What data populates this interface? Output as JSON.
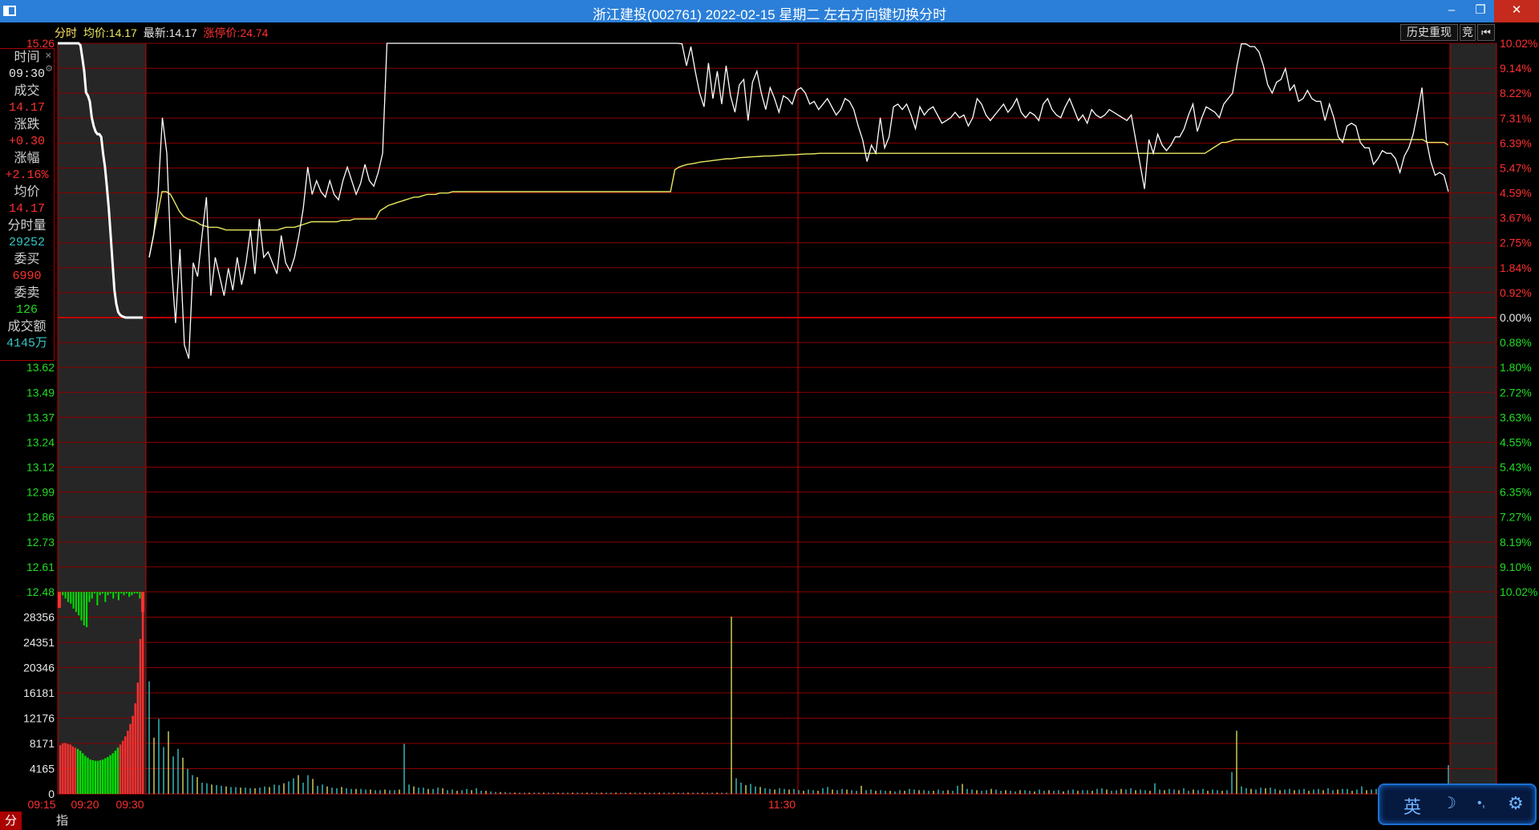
{
  "window": {
    "title": "浙江建投(002761) 2022-02-15 星期二      左右方向键切换分时",
    "minimize_label": "–",
    "maximize_label": "❐",
    "close_label": "✕"
  },
  "header": {
    "tab_label": "分时",
    "avg_label": "均价:",
    "avg_value": "14.17",
    "last_label": "最新:",
    "last_value": "14.17",
    "limit_label": "涨停价:",
    "limit_value": "24.74"
  },
  "toolbar": {
    "history_replay": "历史重现",
    "bid_label": "竞",
    "back_icon": "skip-back-icon"
  },
  "info_panel": {
    "time_label": "时间",
    "time_value": "09:30",
    "trade_label": "成交",
    "trade_value": "14.17",
    "change_label": "涨跌",
    "change_value": "+0.30",
    "pct_label": "涨幅",
    "pct_value": "+2.16%",
    "avg_label": "均价",
    "avg_value": "14.17",
    "minute_vol_label": "分时量",
    "minute_vol_value": "29252",
    "bid_label": "委买",
    "bid_value": "6990",
    "ask_label": "委卖",
    "ask_value": "126",
    "amount_label": "成交额",
    "amount_value": "4145万"
  },
  "tabs": [
    {
      "label": "分时量"
    },
    {
      "label": "指标"
    }
  ],
  "ime": {
    "lang": "英",
    "moon_icon": "moon-icon",
    "dot_icon": "punct-icon",
    "settings_icon": "gear-icon"
  },
  "colors": {
    "up": "#ff3030",
    "down": "#00e000",
    "price_line": "#ffffff",
    "avg_line": "#e8e860",
    "grid": "#8b0000",
    "vol_cyan": "#37c6c6",
    "vol_yellow": "#d8d860",
    "label_green": "#22dd22"
  },
  "chart_data": {
    "type": "line",
    "price_axis_left": [
      "15.26",
      "13.62",
      "13.49",
      "13.37",
      "13.24",
      "13.12",
      "12.99",
      "12.86",
      "12.73",
      "12.61",
      "12.48"
    ],
    "pct_axis_right": [
      "10.02%",
      "9.14%",
      "8.22%",
      "7.31%",
      "6.39%",
      "5.47%",
      "4.59%",
      "3.67%",
      "2.75%",
      "1.84%",
      "0.92%",
      "0.00%",
      "0.88%",
      "1.80%",
      "2.72%",
      "3.63%",
      "4.55%",
      "5.43%",
      "6.35%",
      "7.27%",
      "8.19%",
      "9.10%",
      "10.02%"
    ],
    "volume_axis": [
      "28356",
      "24351",
      "20346",
      "16181",
      "12176",
      "8171",
      "4165",
      "0"
    ],
    "time_axis": [
      "09:15",
      "09:20",
      "09:30",
      "11:30"
    ],
    "prev_close_pct": 0.0,
    "ylim_pct": [
      -10.02,
      10.02
    ],
    "auction": {
      "price_pct": [
        10.02,
        10.02,
        10.02,
        10.02,
        10.02,
        10.02,
        10.02,
        10.02,
        10.02,
        10.02,
        10.02,
        10.02,
        9.95,
        9.5,
        9.0,
        8.22,
        8.1,
        7.9,
        7.31,
        7.0,
        6.8,
        6.7,
        6.7,
        6.6,
        6.0,
        5.5,
        4.8,
        4.0,
        3.0,
        2.0,
        1.0,
        0.5,
        0.2,
        0.1,
        0.05,
        0.02,
        0.0,
        0.0,
        0.0,
        0.0,
        0.0,
        0.0,
        0.0,
        0.0,
        0.0,
        0.0
      ],
      "imbalance": [
        -0.05,
        -0.1,
        -0.2,
        -0.3,
        -0.35,
        -0.5,
        -0.6,
        -0.7,
        -0.85,
        -1.0,
        -1.05,
        -0.3,
        -0.2,
        -0.05,
        -0.4,
        -0.1,
        -0.05,
        -0.3,
        -0.1,
        -0.05,
        -0.2,
        -0.05,
        -0.25,
        -0.05,
        -0.1,
        -0.05,
        -0.15,
        -0.1,
        -0.05,
        -0.05,
        -0.2,
        -0.5
      ],
      "volume": [
        7800,
        8100,
        8150,
        8000,
        7900,
        7600,
        7400,
        7200,
        6900,
        6500,
        6100,
        5800,
        5500,
        5400,
        5300,
        5300,
        5400,
        5500,
        5700,
        5900,
        6200,
        6500,
        6900,
        7400,
        7900,
        8500,
        9200,
        10100,
        11200,
        12500,
        14500,
        17800,
        24800,
        29252
      ]
    },
    "series": [
      {
        "name": "价格",
        "pct": [
          2.2,
          3.0,
          4.5,
          7.3,
          6.0,
          2.0,
          -0.2,
          2.5,
          -1.0,
          -1.5,
          2.0,
          1.5,
          3.0,
          4.4,
          0.8,
          2.2,
          1.5,
          0.8,
          1.8,
          1.0,
          2.2,
          1.2,
          2.0,
          3.2,
          1.6,
          3.6,
          2.2,
          2.4,
          2.0,
          1.6,
          3.0,
          2.0,
          1.7,
          2.2,
          3.0,
          4.0,
          5.5,
          4.5,
          5.0,
          4.6,
          4.4,
          5.0,
          4.5,
          4.3,
          5.0,
          5.5,
          5.0,
          4.5,
          4.9,
          5.6,
          5.0,
          4.8,
          5.3,
          6.0,
          10.02,
          10.02,
          10.02,
          10.02,
          10.02,
          10.02,
          10.02,
          10.02,
          10.02,
          10.02,
          10.02,
          10.02,
          10.02,
          10.02,
          10.02,
          10.02,
          10.02,
          10.02,
          10.02,
          10.02,
          10.02,
          10.02,
          10.02,
          10.02,
          10.02,
          10.02,
          10.02,
          10.02,
          10.02,
          10.02,
          10.02,
          10.02,
          10.02,
          10.02,
          10.02,
          10.02,
          10.02,
          10.02,
          10.02,
          10.02,
          10.02,
          10.02,
          10.02,
          10.02,
          10.02,
          10.02,
          10.02,
          10.02,
          10.02,
          10.02,
          10.02,
          10.02,
          10.02,
          10.02,
          10.02,
          10.02,
          10.02,
          10.02,
          10.02,
          10.02,
          10.02,
          10.02,
          10.02,
          10.02,
          10.02,
          10.02,
          10.02,
          10.0,
          9.2,
          9.9,
          9.0,
          8.2,
          7.7,
          9.3,
          8.0,
          9.0,
          7.8,
          9.2,
          8.1,
          7.5,
          8.5,
          8.7,
          7.2,
          8.6,
          9.0,
          8.2,
          7.6,
          8.4,
          8.0,
          7.5,
          8.1,
          8.0,
          7.8,
          8.3,
          8.4,
          8.2,
          7.8,
          7.9,
          7.6,
          7.8,
          8.0,
          7.7,
          7.4,
          7.6,
          8.0,
          7.9,
          7.6,
          7.0,
          6.5,
          5.7,
          6.3,
          6.0,
          7.3,
          6.2,
          6.6,
          7.7,
          7.8,
          7.6,
          7.8,
          7.4,
          6.9,
          7.7,
          7.4,
          7.6,
          7.7,
          7.4,
          7.1,
          7.2,
          7.3,
          7.5,
          7.3,
          7.4,
          7.0,
          7.3,
          8.0,
          7.8,
          7.4,
          7.2,
          7.4,
          7.6,
          7.8,
          7.5,
          7.7,
          8.0,
          7.5,
          7.3,
          7.5,
          7.4,
          7.2,
          7.8,
          8.0,
          7.6,
          7.4,
          7.3,
          7.7,
          8.0,
          7.6,
          7.2,
          7.4,
          7.1,
          7.6,
          7.4,
          7.3,
          7.4,
          7.6,
          7.5,
          7.4,
          7.3,
          7.2,
          7.4,
          6.5,
          5.6,
          4.7,
          6.5,
          6.0,
          6.7,
          6.3,
          6.1,
          6.3,
          6.6,
          6.6,
          6.9,
          7.4,
          7.8,
          6.8,
          7.3,
          7.7,
          7.6,
          7.5,
          7.3,
          7.8,
          8.0,
          8.2,
          9.2,
          10.0,
          10.0,
          9.9,
          9.9,
          9.7,
          9.2,
          8.5,
          8.2,
          8.6,
          8.7,
          9.1,
          8.3,
          8.5,
          7.9,
          8.0,
          8.3,
          8.0,
          7.9,
          7.9,
          7.2,
          7.8,
          7.3,
          6.6,
          6.4,
          7.0,
          7.1,
          7.0,
          6.4,
          6.2,
          6.2,
          5.6,
          5.8,
          6.1,
          6.0,
          6.0,
          5.8,
          5.3,
          5.9,
          6.2,
          6.7,
          7.5,
          8.4,
          6.5,
          5.7,
          5.2,
          5.3,
          5.2,
          4.6
        ]
      },
      {
        "name": "均价",
        "pct": [
          2.2,
          3.0,
          3.8,
          4.6,
          4.6,
          4.5,
          4.2,
          3.9,
          3.7,
          3.6,
          3.55,
          3.5,
          3.4,
          3.35,
          3.3,
          3.3,
          3.3,
          3.25,
          3.2,
          3.2,
          3.2,
          3.2,
          3.2,
          3.2,
          3.2,
          3.2,
          3.2,
          3.2,
          3.2,
          3.2,
          3.2,
          3.25,
          3.3,
          3.3,
          3.3,
          3.35,
          3.4,
          3.45,
          3.5,
          3.5,
          3.5,
          3.5,
          3.5,
          3.5,
          3.5,
          3.55,
          3.55,
          3.55,
          3.6,
          3.6,
          3.6,
          3.6,
          3.6,
          3.6,
          3.9,
          4.0,
          4.1,
          4.15,
          4.2,
          4.25,
          4.3,
          4.35,
          4.4,
          4.4,
          4.45,
          4.5,
          4.5,
          4.5,
          4.55,
          4.55,
          4.55,
          4.6,
          4.6,
          4.6,
          4.6,
          4.6,
          4.6,
          4.6,
          4.6,
          4.6,
          4.6,
          4.6,
          4.6,
          4.6,
          4.6,
          4.6,
          4.6,
          4.6,
          4.6,
          4.6,
          4.6,
          4.6,
          4.6,
          4.6,
          4.6,
          4.6,
          4.6,
          4.6,
          4.6,
          4.6,
          4.6,
          4.6,
          4.6,
          4.6,
          4.6,
          4.6,
          4.6,
          4.6,
          4.6,
          4.6,
          4.6,
          4.6,
          4.6,
          4.6,
          4.6,
          4.6,
          4.6,
          4.6,
          4.6,
          4.6,
          4.6,
          4.6,
          4.6,
          5.4,
          5.5,
          5.55,
          5.6,
          5.62,
          5.65,
          5.68,
          5.7,
          5.72,
          5.74,
          5.76,
          5.78,
          5.8,
          5.8,
          5.82,
          5.84,
          5.85,
          5.86,
          5.87,
          5.88,
          5.89,
          5.9,
          5.9,
          5.91,
          5.92,
          5.93,
          5.94,
          5.95,
          5.95,
          5.96,
          5.97,
          5.98,
          5.98,
          5.99,
          6.0,
          6.0,
          6.0,
          6.0,
          6.0,
          6.0,
          6.0,
          6.0,
          6.0,
          6.0,
          6.0,
          6.0,
          6.0,
          6.0,
          6.0,
          6.0,
          6.0,
          6.0,
          6.0,
          6.0,
          6.0,
          6.0,
          6.0,
          6.0,
          6.0,
          6.0,
          6.0,
          6.0,
          6.0,
          6.0,
          6.0,
          6.0,
          6.0,
          6.0,
          6.0,
          6.0,
          6.0,
          6.0,
          6.0,
          6.0,
          6.0,
          6.0,
          6.0,
          6.0,
          6.0,
          6.0,
          6.0,
          6.0,
          6.0,
          6.0,
          6.0,
          6.0,
          6.0,
          6.0,
          6.0,
          6.0,
          6.0,
          6.0,
          6.0,
          6.0,
          6.0,
          6.0,
          6.0,
          6.0,
          6.0,
          6.0,
          6.0,
          6.0,
          6.0,
          6.0,
          6.0,
          6.0,
          6.0,
          6.0,
          6.0,
          6.0,
          6.0,
          6.0,
          6.0,
          6.0,
          6.0,
          6.0,
          6.0,
          6.0,
          6.0,
          6.0,
          6.0,
          6.0,
          6.0,
          6.0,
          6.0,
          6.1,
          6.2,
          6.3,
          6.4,
          6.4,
          6.45,
          6.5,
          6.5,
          6.5,
          6.5,
          6.5,
          6.5,
          6.5,
          6.5,
          6.5,
          6.5,
          6.5,
          6.5,
          6.5,
          6.5,
          6.5,
          6.5,
          6.5,
          6.5,
          6.5,
          6.5,
          6.5,
          6.5,
          6.5,
          6.5,
          6.5,
          6.5,
          6.5,
          6.5,
          6.5,
          6.5,
          6.5,
          6.5,
          6.5,
          6.5,
          6.5,
          6.5,
          6.5,
          6.5,
          6.5,
          6.5,
          6.5,
          6.5,
          6.5,
          6.5,
          6.5,
          6.4,
          6.4,
          6.4,
          6.4,
          6.4,
          6.3
        ]
      }
    ],
    "volume": [
      18000,
      9000,
      12000,
      7500,
      10000,
      6000,
      7200,
      5800,
      4000,
      3000,
      2700,
      1800,
      1700,
      1500,
      1400,
      1300,
      1200,
      1100,
      1100,
      1000,
      1000,
      900,
      900,
      1000,
      1200,
      1100,
      1500,
      1400,
      1700,
      2000,
      2500,
      3000,
      1800,
      3000,
      2400,
      1300,
      1500,
      1200,
      1000,
      900,
      1100,
      900,
      800,
      800,
      800,
      700,
      700,
      600,
      600,
      700,
      600,
      600,
      700,
      8000,
      1500,
      1200,
      1000,
      1000,
      800,
      800,
      1000,
      900,
      600,
      700,
      500,
      600,
      800,
      600,
      900,
      500,
      500,
      400,
      300,
      300,
      300,
      200,
      200,
      200,
      200,
      200,
      200,
      200,
      200,
      200,
      200,
      200,
      200,
      200,
      200,
      200,
      200,
      200,
      200,
      200,
      200,
      200,
      200,
      200,
      200,
      200,
      200,
      200,
      200,
      200,
      200,
      200,
      200,
      200,
      200,
      200,
      200,
      200,
      200,
      200,
      200,
      200,
      200,
      200,
      200,
      200,
      200,
      28356,
      2500,
      1800,
      1400,
      1600,
      1200,
      1100,
      900,
      800,
      700,
      900,
      800,
      700,
      800,
      600,
      500,
      700,
      600,
      500,
      900,
      1100,
      700,
      600,
      800,
      700,
      600,
      500,
      1300,
      600,
      700,
      500,
      600,
      500,
      500,
      400,
      600,
      500,
      800,
      700,
      600,
      600,
      500,
      500,
      700,
      500,
      600,
      500,
      1300,
      1600,
      800,
      700,
      600,
      500,
      600,
      800,
      700,
      500,
      600,
      500,
      400,
      600,
      600,
      500,
      400,
      700,
      500,
      600,
      500,
      600,
      400,
      600,
      700,
      500,
      600,
      600,
      500,
      800,
      900,
      700,
      500,
      600,
      800,
      700,
      900,
      600,
      700,
      600,
      500,
      1700,
      700,
      600,
      800,
      700,
      600,
      900,
      500,
      700,
      600,
      800,
      500,
      700,
      600,
      500,
      600,
      3500,
      10100,
      1200,
      900,
      800,
      700,
      1000,
      900,
      1000,
      800,
      600,
      700,
      800,
      600,
      700,
      800,
      500,
      700,
      800,
      600,
      900,
      600,
      700,
      800,
      800,
      500,
      700,
      1200,
      600,
      700,
      800,
      500,
      900,
      600,
      700,
      800,
      1000,
      600,
      700,
      800,
      900,
      700,
      600,
      800,
      600,
      4600
    ]
  }
}
